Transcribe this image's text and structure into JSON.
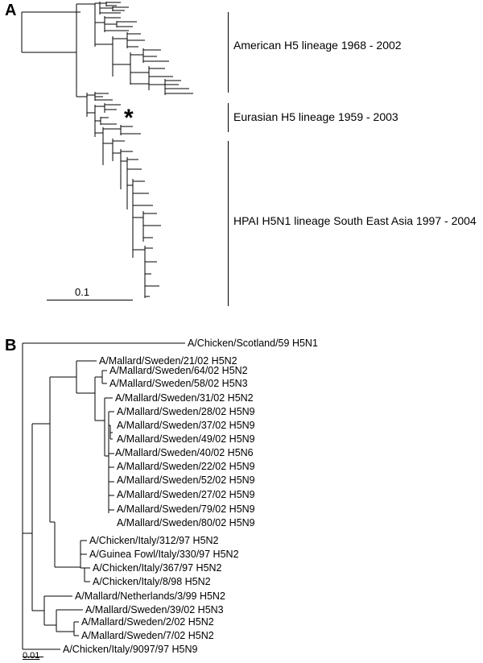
{
  "panel_a": {
    "letter": "A",
    "lineages": [
      {
        "label": "American H5 lineage 1968 - 2002"
      },
      {
        "label": "Eurasian H5 lineage 1959 - 2003"
      },
      {
        "label": "HPAI H5N1 lineage South East Asia 1997 - 2004"
      }
    ],
    "marker": "*",
    "scale_label": "0.1"
  },
  "panel_b": {
    "letter": "B",
    "taxa": [
      "A/Chicken/Scotland/59 H5N1",
      "A/Mallard/Sweden/21/02 H5N2",
      "A/Mallard/Sweden/64/02 H5N2",
      "A/Mallard/Sweden/58/02 H5N3",
      "A/Mallard/Sweden/31/02 H5N2",
      "A/Mallard/Sweden/28/02 H5N9",
      "A/Mallard/Sweden/37/02 H5N9",
      "A/Mallard/Sweden/49/02 H5N9",
      "A/Mallard/Sweden/40/02 H5N6",
      "A/Mallard/Sweden/22/02 H5N9",
      "A/Mallard/Sweden/52/02 H5N9",
      "A/Mallard/Sweden/27/02 H5N9",
      "A/Mallard/Sweden/79/02 H5N9",
      "A/Mallard/Sweden/80/02 H5N9",
      "A/Chicken/Italy/312/97 H5N2",
      "A/Guinea Fowl/Italy/330/97 H5N2",
      "A/Chicken/Italy/367/97 H5N2",
      "A/Chicken/Italy/8/98 H5N2",
      "A/Mallard/Netherlands/3/99 H5N2",
      "A/Mallard/Sweden/39/02 H5N3",
      "A/Mallard/Sweden/2/02 H5N2",
      "A/Mallard/Sweden/7/02 H5N2",
      "A/Chicken/Italy/9097/97 H5N9"
    ],
    "scale_label": "0.01"
  }
}
